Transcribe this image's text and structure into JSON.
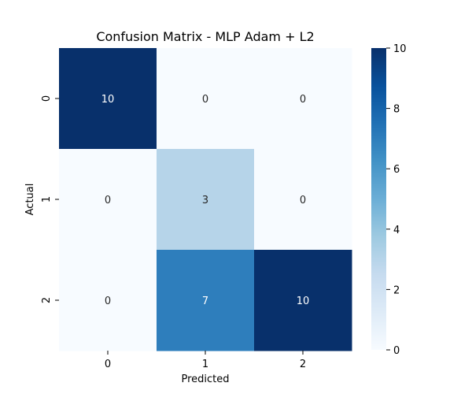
{
  "chart_data": {
    "type": "heatmap",
    "title": "Confusion Matrix - MLP Adam + L2",
    "xlabel": "Predicted",
    "ylabel": "Actual",
    "x_categories": [
      "0",
      "1",
      "2"
    ],
    "y_categories": [
      "0",
      "1",
      "2"
    ],
    "values": [
      [
        10,
        0,
        0
      ],
      [
        0,
        3,
        0
      ],
      [
        0,
        7,
        10
      ]
    ],
    "colorbar": {
      "range": [
        0,
        10
      ],
      "ticks": [
        0,
        2,
        4,
        6,
        8,
        10
      ],
      "colormap": "Blues"
    },
    "colors": {
      "low": "#f7fbff",
      "high": "#08306b"
    }
  }
}
